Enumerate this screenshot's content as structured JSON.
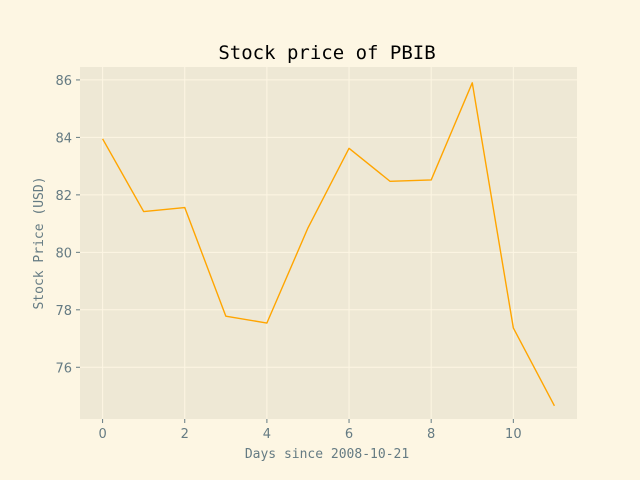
{
  "chart_data": {
    "type": "line",
    "title": "Stock price of PBIB",
    "xlabel": "Days since 2008-10-21",
    "ylabel": "Stock Price (USD)",
    "x": [
      0,
      1,
      2,
      3,
      4,
      5,
      6,
      7,
      8,
      9,
      10,
      11
    ],
    "series": [
      {
        "values": [
          83.95,
          81.42,
          81.56,
          77.78,
          77.54,
          80.85,
          83.62,
          82.47,
          82.52,
          85.9,
          77.37,
          74.66
        ],
        "color": "#ffa500"
      }
    ],
    "xlim": [
      -0.55,
      11.55
    ],
    "ylim": [
      74.2,
      86.45
    ],
    "xticks": [
      0,
      2,
      4,
      6,
      8,
      10
    ],
    "yticks": [
      76,
      78,
      80,
      82,
      84,
      86
    ],
    "grid": true,
    "colors": {
      "figure_background": "#fdf6e3",
      "plot_background": "#eee8d5",
      "grid": "#fdf6e3",
      "text": "#657b83"
    }
  }
}
